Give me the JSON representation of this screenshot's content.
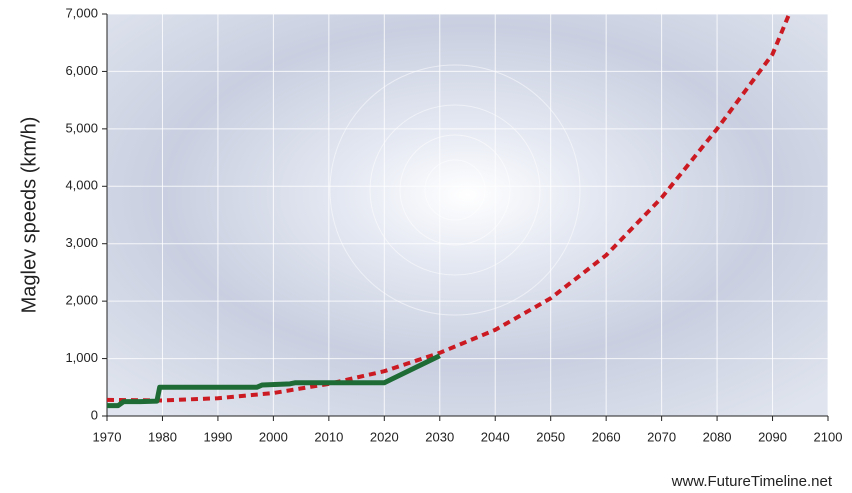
{
  "chart_data": {
    "type": "line",
    "ylabel": "Maglev speeds (km/h)",
    "footer": "www.FutureTimeline.net",
    "xlim": [
      1970,
      2100
    ],
    "xticks": [
      1970,
      1980,
      1990,
      2000,
      2010,
      2020,
      2030,
      2040,
      2050,
      2060,
      2070,
      2080,
      2090,
      2100
    ],
    "ylim": [
      0,
      7000
    ],
    "yticks": [
      0,
      {
        "value": 1000,
        "label": "1,000"
      },
      {
        "value": 2000,
        "label": "2,000"
      },
      {
        "value": 3000,
        "label": "3,000"
      },
      {
        "value": 4000,
        "label": "4,000"
      },
      {
        "value": 5000,
        "label": "5,000"
      },
      {
        "value": 6000,
        "label": "6,000"
      },
      {
        "value": 7000,
        "label": "7,000"
      }
    ],
    "grid": true,
    "series": [
      {
        "color": "#cc1a22",
        "dashed": true,
        "x": [
          1970,
          1980,
          1990,
          2000,
          2010,
          2020,
          2030,
          2040,
          2050,
          2060,
          2070,
          2080,
          2090,
          2093
        ],
        "values": [
          280,
          270,
          310,
          400,
          560,
          780,
          1100,
          1500,
          2050,
          2800,
          3800,
          5000,
          6300,
          7000
        ]
      },
      {
        "color": "#1e6b36",
        "dashed": false,
        "x": [
          1970,
          1972,
          1973,
          1976,
          1979,
          1979.5,
          1997,
          1998,
          2003,
          2004,
          2020,
          2030
        ],
        "values": [
          180,
          180,
          250,
          250,
          260,
          500,
          500,
          540,
          560,
          580,
          580,
          1050
        ]
      }
    ]
  }
}
